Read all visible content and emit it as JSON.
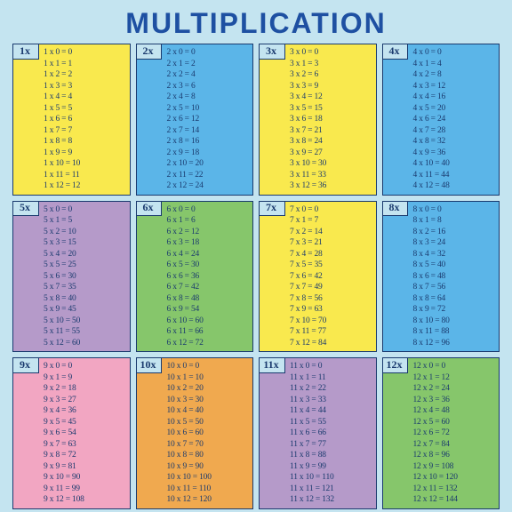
{
  "title": "MULTIPLICATION",
  "background_color": "#c4e4f0",
  "border_color": "#1a3a6e",
  "text_color": "#1a3a6e",
  "title_color": "#1e50a2",
  "title_fontsize": 32,
  "row_fontsize": 9.5,
  "tables": [
    {
      "label": "1x",
      "n": 1,
      "color": "#f9e94e"
    },
    {
      "label": "2x",
      "n": 2,
      "color": "#5bb5e8"
    },
    {
      "label": "3x",
      "n": 3,
      "color": "#f9e94e"
    },
    {
      "label": "4x",
      "n": 4,
      "color": "#5bb5e8"
    },
    {
      "label": "5x",
      "n": 5,
      "color": "#b59ac9"
    },
    {
      "label": "6x",
      "n": 6,
      "color": "#86c66b"
    },
    {
      "label": "7x",
      "n": 7,
      "color": "#f9e94e"
    },
    {
      "label": "8x",
      "n": 8,
      "color": "#5bb5e8"
    },
    {
      "label": "9x",
      "n": 9,
      "color": "#f2a6c2"
    },
    {
      "label": "10x",
      "n": 10,
      "color": "#f0a94f"
    },
    {
      "label": "11x",
      "n": 11,
      "color": "#b59ac9"
    },
    {
      "label": "12x",
      "n": 12,
      "color": "#86c66b"
    }
  ],
  "multiplier_range": [
    0,
    12
  ]
}
